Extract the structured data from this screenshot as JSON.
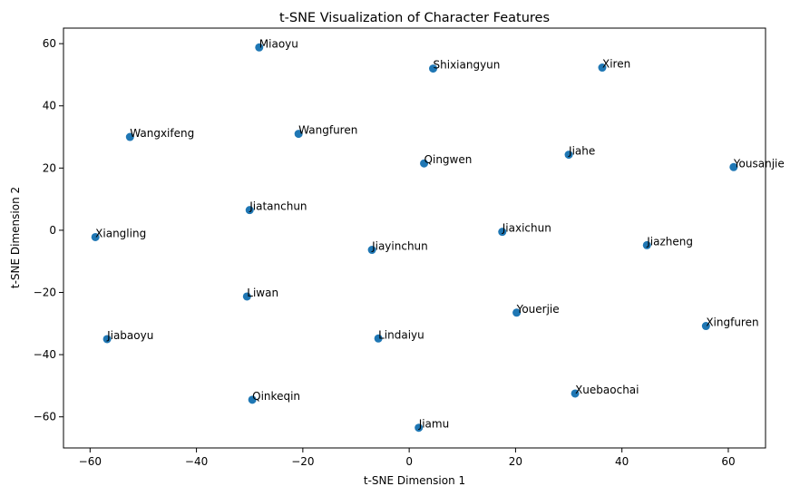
{
  "chart_data": {
    "type": "scatter",
    "title": "t-SNE Visualization of Character Features",
    "xlabel": "t-SNE Dimension 1",
    "ylabel": "t-SNE Dimension 2",
    "xlim": [
      -65,
      67
    ],
    "ylim": [
      -70,
      65
    ],
    "xticks": [
      -60,
      -40,
      -20,
      0,
      20,
      40,
      60
    ],
    "yticks": [
      -60,
      -40,
      -20,
      0,
      20,
      40,
      60
    ],
    "grid": false,
    "marker_color": "#1f77b4",
    "points": [
      {
        "label": "Miaoyu",
        "x": -28.2,
        "y": 58.8
      },
      {
        "label": "Shixiangyun",
        "x": 4.5,
        "y": 52.0
      },
      {
        "label": "Xiren",
        "x": 36.3,
        "y": 52.3
      },
      {
        "label": "Wangxifeng",
        "x": -52.5,
        "y": 30.0
      },
      {
        "label": "Wangfuren",
        "x": -20.8,
        "y": 31.0
      },
      {
        "label": "Jiahe",
        "x": 30.0,
        "y": 24.3
      },
      {
        "label": "Qingwen",
        "x": 2.8,
        "y": 21.5
      },
      {
        "label": "Yousanjie",
        "x": 61.0,
        "y": 20.3
      },
      {
        "label": "Jiatanchun",
        "x": -30.0,
        "y": 6.5
      },
      {
        "label": "Xiangling",
        "x": -59.0,
        "y": -2.2
      },
      {
        "label": "Jiaxichun",
        "x": 17.5,
        "y": -0.5
      },
      {
        "label": "Jiazheng",
        "x": 44.7,
        "y": -4.8
      },
      {
        "label": "Jiayinchun",
        "x": -7.0,
        "y": -6.3
      },
      {
        "label": "Liwan",
        "x": -30.5,
        "y": -21.3
      },
      {
        "label": "Youerjie",
        "x": 20.2,
        "y": -26.5
      },
      {
        "label": "Xingfuren",
        "x": 55.8,
        "y": -30.8
      },
      {
        "label": "Jiabaoyu",
        "x": -56.8,
        "y": -35.0
      },
      {
        "label": "Lindaiyu",
        "x": -5.8,
        "y": -34.8
      },
      {
        "label": "Qinkeqin",
        "x": -29.5,
        "y": -54.5
      },
      {
        "label": "Xuebaochai",
        "x": 31.2,
        "y": -52.5
      },
      {
        "label": "Jiamu",
        "x": 1.8,
        "y": -63.5
      }
    ]
  }
}
